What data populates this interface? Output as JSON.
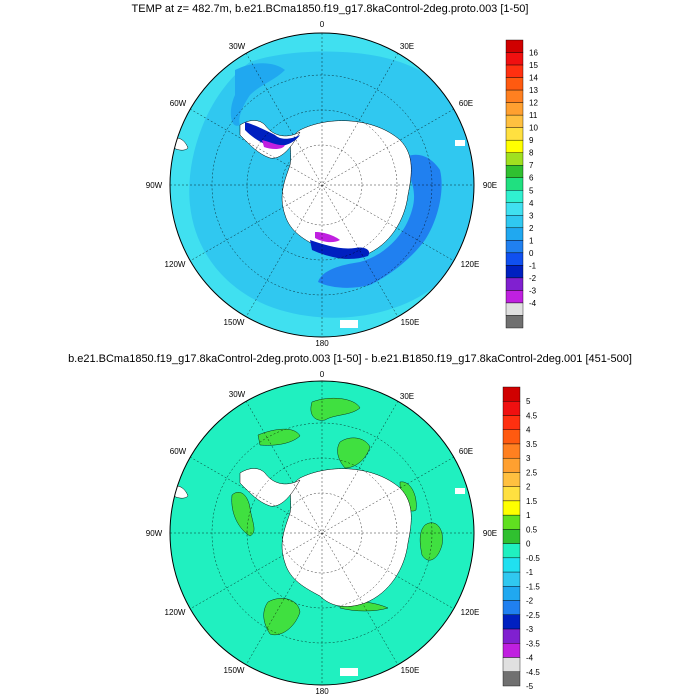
{
  "panels": [
    {
      "title": "TEMP at z= 482.7m, b.e21.BCma1850.f19_g17.8kaControl-2deg.proto.003 [1-50]",
      "colorbar": {
        "labels": [
          "16",
          "15",
          "14",
          "13",
          "12",
          "11",
          "10",
          "9",
          "8",
          "7",
          "6",
          "5",
          "4",
          "3",
          "2",
          "1",
          "0",
          "-1",
          "-2",
          "-3",
          "-4"
        ],
        "colors": [
          "#d00000",
          "#f01010",
          "#ff3010",
          "#ff5a10",
          "#ff8020",
          "#ffa030",
          "#ffc040",
          "#ffe040",
          "#ffff00",
          "#a0e020",
          "#30c030",
          "#20e080",
          "#30f0d0",
          "#40e0f0",
          "#30c8f0",
          "#20a8f0",
          "#2080f0",
          "#1050f0",
          "#0020c0",
          "#8020d0",
          "#c020e0",
          "#e0e0e0",
          "#707070"
        ]
      },
      "colors": {
        "ocean_main": "#30c8f0",
        "ocean_deep": "#20a8f0",
        "ocean_cold": "#2080f0",
        "ocean_coldest": "#0020c0",
        "magenta": "#c020e0",
        "outer": "#40e0f0"
      }
    },
    {
      "title": "b.e21.BCma1850.f19_g17.8kaControl-2deg.proto.003 [1-50] - b.e21.B1850.f19_g17.8kaControl-2deg.001 [451-500]",
      "colorbar": {
        "labels": [
          "5",
          "4.5",
          "4",
          "3.5",
          "3",
          "2.5",
          "2",
          "1.5",
          "1",
          "0.5",
          "0",
          "-0.5",
          "-1",
          "-1.5",
          "-2",
          "-2.5",
          "-3",
          "-3.5",
          "-4",
          "-4.5",
          "-5"
        ],
        "colors": [
          "#d00000",
          "#f01010",
          "#ff3010",
          "#ff5a10",
          "#ff8020",
          "#ffa030",
          "#ffc040",
          "#ffe040",
          "#ffff00",
          "#60e020",
          "#30c030",
          "#20f0c0",
          "#20e0f0",
          "#30c8f0",
          "#20a8f0",
          "#2080f0",
          "#0020c0",
          "#8020d0",
          "#c020e0",
          "#e0e0e0",
          "#707070"
        ]
      },
      "colors": {
        "ocean_main": "#20f0c0",
        "green": "#40e040"
      }
    }
  ],
  "lon_labels": [
    "0",
    "30E",
    "60E",
    "90E",
    "120E",
    "150E",
    "180",
    "150W",
    "120W",
    "90W",
    "60W",
    "30W"
  ]
}
